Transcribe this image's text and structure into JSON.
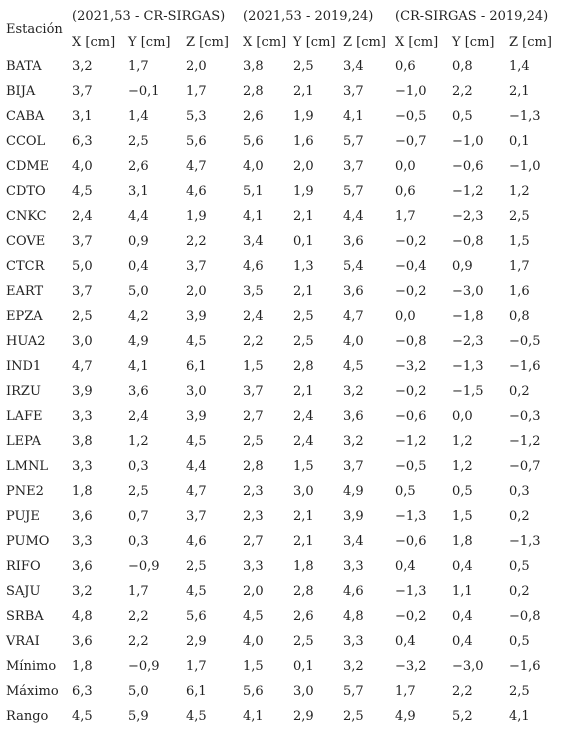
{
  "header": {
    "station_label": "Estación",
    "groups": [
      "(2021,53 - CR-SIRGAS)",
      "(2021,53 - 2019,24)",
      "(CR-SIRGAS - 2019,24)"
    ],
    "columns": [
      "X [cm]",
      "Y [cm]",
      "Z [cm]",
      "X [cm]",
      "Y [cm]",
      "Z [cm]",
      "X [cm]",
      "Y [cm]",
      "Z [cm]"
    ]
  },
  "table": {
    "rows": [
      {
        "label": "BATA",
        "values": [
          "3,2",
          "1,7",
          "2,0",
          "3,8",
          "2,5",
          "3,4",
          "0,6",
          "0,8",
          "1,4"
        ]
      },
      {
        "label": "BIJA",
        "values": [
          "3,7",
          "−0,1",
          "1,7",
          "2,8",
          "2,1",
          "3,7",
          "−1,0",
          "2,2",
          "2,1"
        ]
      },
      {
        "label": "CABA",
        "values": [
          "3,1",
          "1,4",
          "5,3",
          "2,6",
          "1,9",
          "4,1",
          "−0,5",
          "0,5",
          "−1,3"
        ]
      },
      {
        "label": "CCOL",
        "values": [
          "6,3",
          "2,5",
          "5,6",
          "5,6",
          "1,6",
          "5,7",
          "−0,7",
          "−1,0",
          "0,1"
        ]
      },
      {
        "label": "CDME",
        "values": [
          "4,0",
          "2,6",
          "4,7",
          "4,0",
          "2,0",
          "3,7",
          "0,0",
          "−0,6",
          "−1,0"
        ]
      },
      {
        "label": "CDTO",
        "values": [
          "4,5",
          "3,1",
          "4,6",
          "5,1",
          "1,9",
          "5,7",
          "0,6",
          "−1,2",
          "1,2"
        ]
      },
      {
        "label": "CNKC",
        "values": [
          "2,4",
          "4,4",
          "1,9",
          "4,1",
          "2,1",
          "4,4",
          "1,7",
          "−2,3",
          "2,5"
        ]
      },
      {
        "label": "COVE",
        "values": [
          "3,7",
          "0,9",
          "2,2",
          "3,4",
          "0,1",
          "3,6",
          "−0,2",
          "−0,8",
          "1,5"
        ]
      },
      {
        "label": "CTCR",
        "values": [
          "5,0",
          "0,4",
          "3,7",
          "4,6",
          "1,3",
          "5,4",
          "−0,4",
          "0,9",
          "1,7"
        ]
      },
      {
        "label": "EART",
        "values": [
          "3,7",
          "5,0",
          "2,0",
          "3,5",
          "2,1",
          "3,6",
          "−0,2",
          "−3,0",
          "1,6"
        ]
      },
      {
        "label": "EPZA",
        "values": [
          "2,5",
          "4,2",
          "3,9",
          "2,4",
          "2,5",
          "4,7",
          "0,0",
          "−1,8",
          "0,8"
        ]
      },
      {
        "label": "HUA2",
        "values": [
          "3,0",
          "4,9",
          "4,5",
          "2,2",
          "2,5",
          "4,0",
          "−0,8",
          "−2,3",
          "−0,5"
        ]
      },
      {
        "label": "IND1",
        "values": [
          "4,7",
          "4,1",
          "6,1",
          "1,5",
          "2,8",
          "4,5",
          "−3,2",
          "−1,3",
          "−1,6"
        ]
      },
      {
        "label": "IRZU",
        "values": [
          "3,9",
          "3,6",
          "3,0",
          "3,7",
          "2,1",
          "3,2",
          "−0,2",
          "−1,5",
          "0,2"
        ]
      },
      {
        "label": "LAFE",
        "values": [
          "3,3",
          "2,4",
          "3,9",
          "2,7",
          "2,4",
          "3,6",
          "−0,6",
          "0,0",
          "−0,3"
        ]
      },
      {
        "label": "LEPA",
        "values": [
          "3,8",
          "1,2",
          "4,5",
          "2,5",
          "2,4",
          "3,2",
          "−1,2",
          "1,2",
          "−1,2"
        ]
      },
      {
        "label": "LMNL",
        "values": [
          "3,3",
          "0,3",
          "4,4",
          "2,8",
          "1,5",
          "3,7",
          "−0,5",
          "1,2",
          "−0,7"
        ]
      },
      {
        "label": "PNE2",
        "values": [
          "1,8",
          "2,5",
          "4,7",
          "2,3",
          "3,0",
          "4,9",
          "0,5",
          "0,5",
          "0,3"
        ]
      },
      {
        "label": "PUJE",
        "values": [
          "3,6",
          "0,7",
          "3,7",
          "2,3",
          "2,1",
          "3,9",
          "−1,3",
          "1,5",
          "0,2"
        ]
      },
      {
        "label": "PUMO",
        "values": [
          "3,3",
          "0,3",
          "4,6",
          "2,7",
          "2,1",
          "3,4",
          "−0,6",
          "1,8",
          "−1,3"
        ]
      },
      {
        "label": "RIFO",
        "values": [
          "3,6",
          "−0,9",
          "2,5",
          "3,3",
          "1,8",
          "3,3",
          "0,4",
          "0,4",
          "0,5"
        ]
      },
      {
        "label": "SAJU",
        "values": [
          "3,2",
          "1,7",
          "4,5",
          "2,0",
          "2,8",
          "4,6",
          "−1,3",
          "1,1",
          "0,2"
        ]
      },
      {
        "label": "SRBA",
        "values": [
          "4,8",
          "2,2",
          "5,6",
          "4,5",
          "2,6",
          "4,8",
          "−0,2",
          "0,4",
          "−0,8"
        ]
      },
      {
        "label": "VRAI",
        "values": [
          "3,6",
          "2,2",
          "2,9",
          "4,0",
          "2,5",
          "3,3",
          "0,4",
          "0,4",
          "0,5"
        ]
      },
      {
        "label": "Mínimo",
        "values": [
          "1,8",
          "−0,9",
          "1,7",
          "1,5",
          "0,1",
          "3,2",
          "−3,2",
          "−3,0",
          "−1,6"
        ]
      },
      {
        "label": "Máximo",
        "values": [
          "6,3",
          "5,0",
          "6,1",
          "5,6",
          "3,0",
          "5,7",
          "1,7",
          "2,2",
          "2,5"
        ]
      },
      {
        "label": "Rango",
        "values": [
          "4,5",
          "5,9",
          "4,5",
          "4,1",
          "2,9",
          "2,5",
          "4,9",
          "5,2",
          "4,1"
        ]
      }
    ]
  }
}
